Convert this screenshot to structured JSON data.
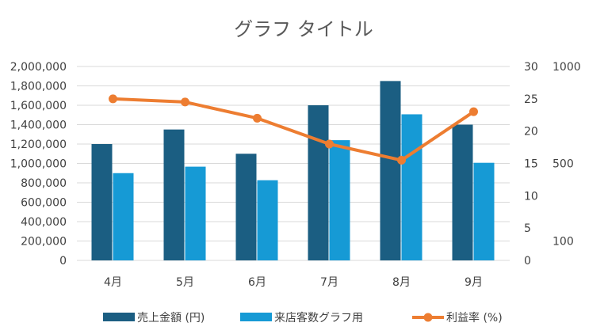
{
  "chart_data": {
    "type": "bar+line",
    "title": "グラフ タイトル",
    "categories": [
      "4月",
      "5月",
      "6月",
      "7月",
      "8月",
      "9月"
    ],
    "series": [
      {
        "name": "売上金額 (円)",
        "kind": "bar",
        "axis": "left",
        "color": "#1b5e82",
        "values": [
          1200000,
          1350000,
          1100000,
          1600000,
          1850000,
          1400000
        ]
      },
      {
        "name": "来店客数グラフ用",
        "kind": "bar",
        "axis": "right",
        "color": "#169ad5",
        "values": [
          13.5,
          14.5,
          12.4,
          18.6,
          22.6,
          15.1
        ]
      },
      {
        "name": "利益率 (%)",
        "kind": "line",
        "axis": "right",
        "color": "#ed7d31",
        "values": [
          25,
          24.5,
          22,
          18,
          15.5,
          23
        ]
      }
    ],
    "y_left": {
      "ylim": [
        0,
        2000000
      ],
      "ticks": [
        0,
        200000,
        400000,
        600000,
        800000,
        1000000,
        1200000,
        1400000,
        1600000,
        1800000,
        2000000
      ],
      "tick_labels": [
        "0",
        "200,000",
        "400,000",
        "600,000",
        "800,000",
        "1,000,000",
        "1,200,000",
        "1,400,000",
        "1,600,000",
        "1,800,000",
        "2,000,000"
      ]
    },
    "y_right": {
      "ylim": [
        0,
        30
      ],
      "ticks": [
        0,
        5,
        10,
        15,
        20,
        25,
        30
      ],
      "tick_labels": [
        "0",
        "5",
        "10",
        "15",
        "20",
        "25",
        "30"
      ]
    },
    "y_right2": {
      "ylim": [
        0,
        1000
      ],
      "tick_labels": [
        {
          "label": "1000",
          "value": 1000
        },
        {
          "label": "500",
          "value": 500
        },
        {
          "label": "100",
          "value": 100
        }
      ]
    },
    "grid": true,
    "legend": "bottom"
  }
}
